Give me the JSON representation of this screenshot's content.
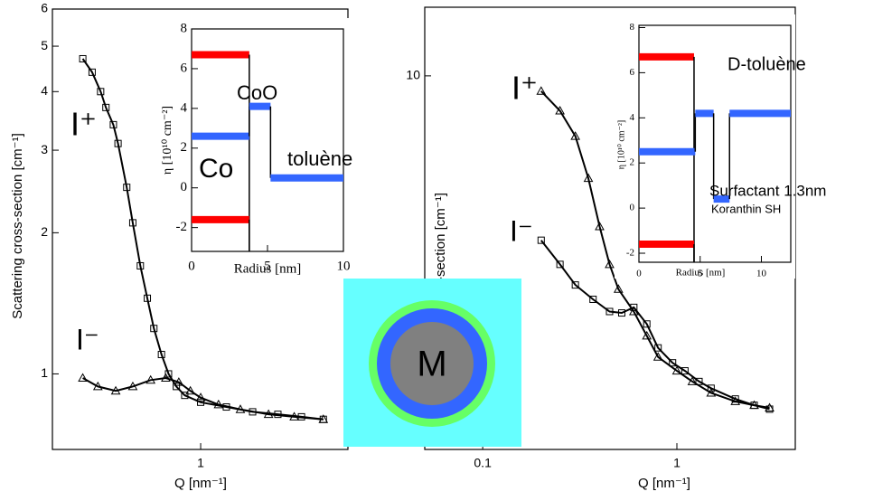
{
  "chart_data": [
    {
      "type": "line",
      "log_x": true,
      "log_y": true,
      "xlabel": "Q [nm⁻¹]",
      "ylabel": "Scattering cross-section [cm⁻¹]",
      "xlim": [
        0.22,
        4.5
      ],
      "xticks": [
        1
      ],
      "ylim": [
        0.69,
        6
      ],
      "yticks": [
        1,
        2,
        3,
        4,
        5,
        6
      ],
      "annotations": [
        "I⁺",
        "I⁻"
      ],
      "series": [
        {
          "name": "I⁺",
          "marker": "square",
          "color": "#000000",
          "x": [
            0.3,
            0.33,
            0.36,
            0.38,
            0.41,
            0.43,
            0.47,
            0.5,
            0.54,
            0.58,
            0.62,
            0.67,
            0.72,
            0.78,
            0.85,
            1.0,
            1.3,
            1.7,
            2.2,
            2.8,
            3.5
          ],
          "values": [
            4.7,
            4.4,
            4.0,
            3.7,
            3.4,
            3.1,
            2.5,
            2.1,
            1.7,
            1.45,
            1.25,
            1.1,
            1.0,
            0.94,
            0.9,
            0.87,
            0.85,
            0.83,
            0.82,
            0.81,
            0.8
          ]
        },
        {
          "name": "I⁻",
          "marker": "triangle",
          "color": "#000000",
          "x": [
            0.3,
            0.35,
            0.42,
            0.5,
            0.6,
            0.7,
            0.8,
            0.9,
            1.0,
            1.2,
            1.5,
            2.0,
            2.6,
            3.5
          ],
          "values": [
            0.98,
            0.94,
            0.92,
            0.94,
            0.97,
            0.98,
            0.96,
            0.92,
            0.89,
            0.86,
            0.84,
            0.82,
            0.81,
            0.8
          ]
        }
      ]
    },
    {
      "type": "step",
      "xlabel": "Radius [nm]",
      "ylabel": "η [10¹⁰ cm⁻²]",
      "xlim": [
        0,
        10
      ],
      "xticks": [
        0,
        5,
        10
      ],
      "ylim": [
        -3.2,
        8
      ],
      "yticks": [
        -2,
        0,
        2,
        4,
        6,
        8
      ],
      "annotations": [
        "CoO",
        "toluène",
        "Co"
      ],
      "series": [
        {
          "color": "#ff0000",
          "edges": [
            0,
            3.8
          ],
          "values": [
            6.7
          ]
        },
        {
          "color": "#ff0000",
          "edges": [
            0,
            3.8
          ],
          "values": [
            -1.6
          ]
        },
        {
          "color": "#3366ff",
          "edges": [
            0,
            3.8,
            5.2,
            10
          ],
          "values": [
            2.6,
            4.1,
            0.5
          ]
        }
      ]
    },
    {
      "type": "line",
      "log_x": true,
      "log_y": true,
      "xlabel": "Q [nm⁻¹]",
      "ylabel": "cross-section [cm⁻¹]",
      "xlim": [
        0.0503,
        4.07
      ],
      "xticks": [
        0.1,
        1
      ],
      "ylim": [
        0.92,
        15.5
      ],
      "yticks": [
        10
      ],
      "annotations": [
        "I⁺",
        "I⁻"
      ],
      "series": [
        {
          "name": "I⁺",
          "marker": "triangle",
          "color": "#000000",
          "x": [
            0.2,
            0.25,
            0.3,
            0.35,
            0.4,
            0.45,
            0.5,
            0.6,
            0.7,
            0.8,
            1.0,
            1.2,
            1.5,
            2.0,
            2.5,
            3.0
          ],
          "values": [
            9.07,
            8.0,
            6.8,
            5.2,
            3.82,
            3.0,
            2.56,
            2.22,
            1.9,
            1.66,
            1.52,
            1.42,
            1.32,
            1.25,
            1.22,
            1.2
          ]
        },
        {
          "name": "I⁻",
          "marker": "square",
          "color": "#000000",
          "x": [
            0.2,
            0.25,
            0.3,
            0.37,
            0.45,
            0.52,
            0.6,
            0.7,
            0.8,
            0.95,
            1.1,
            1.3,
            1.5,
            2.0,
            2.5,
            3.0
          ],
          "values": [
            3.5,
            3.0,
            2.63,
            2.4,
            2.22,
            2.2,
            2.28,
            2.05,
            1.76,
            1.6,
            1.52,
            1.42,
            1.36,
            1.27,
            1.22,
            1.19
          ]
        }
      ]
    },
    {
      "type": "step",
      "xlabel": "Radius [nm]",
      "ylabel": "η [10¹⁰ cm⁻²]",
      "xlim": [
        0,
        12.4
      ],
      "xticks": [
        0,
        5,
        10
      ],
      "ylim": [
        -2.4,
        8.1
      ],
      "yticks": [
        -2,
        0,
        2,
        4,
        6,
        8
      ],
      "annotations": [
        "D-toluène",
        "Surfactant 1.3nm",
        "Koranthin SH"
      ],
      "series": [
        {
          "color": "#ff0000",
          "edges": [
            0,
            4.5
          ],
          "values": [
            6.7
          ]
        },
        {
          "color": "#ff0000",
          "edges": [
            0,
            4.5
          ],
          "values": [
            -1.6
          ]
        },
        {
          "color": "#3366ff",
          "edges": [
            0,
            4.6,
            6.1,
            7.4,
            12.4
          ],
          "values": [
            2.5,
            4.2,
            0.4,
            4.2
          ]
        }
      ]
    }
  ],
  "diagram": {
    "core_label": "M"
  }
}
